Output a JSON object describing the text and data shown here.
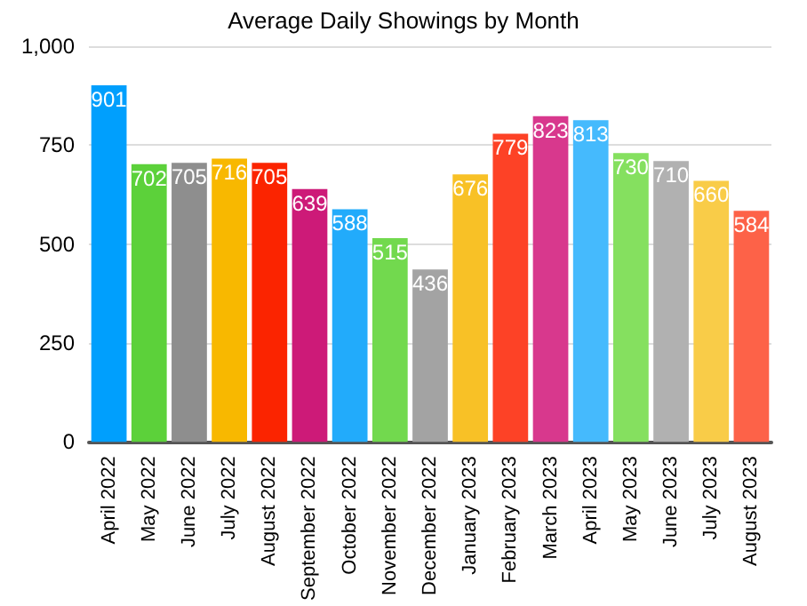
{
  "chart_data": {
    "type": "bar",
    "title": "Average Daily Showings by Month",
    "categories": [
      "April 2022",
      "May 2022",
      "June 2022",
      "July 2022",
      "August 2022",
      "September 2022",
      "October 2022",
      "November 2022",
      "December 2022",
      "January 2023",
      "February 2023",
      "March 2023",
      "April 2023",
      "May 2023",
      "June 2023",
      "July 2023",
      "August 2023"
    ],
    "values": [
      901,
      702,
      705,
      716,
      705,
      639,
      588,
      515,
      436,
      676,
      779,
      823,
      813,
      730,
      710,
      660,
      584
    ],
    "colors": [
      "#009ffd",
      "#5cd13a",
      "#8e8e8e",
      "#f8b800",
      "#fb2400",
      "#cd1a78",
      "#22abfb",
      "#72d94e",
      "#a3a3a3",
      "#f8c126",
      "#fd4226",
      "#d8388d",
      "#45bafd",
      "#85e05f",
      "#b1b1b1",
      "#f9cc48",
      "#fd6248"
    ],
    "ylim": [
      0,
      1000
    ],
    "yticks": [
      0,
      {
        "value": 250,
        "label": "250"
      },
      {
        "value": 500,
        "label": "500"
      },
      {
        "value": 750,
        "label": "750"
      },
      {
        "value": 1000,
        "label": "1,000"
      }
    ],
    "grid": "y",
    "data_labels": true
  }
}
